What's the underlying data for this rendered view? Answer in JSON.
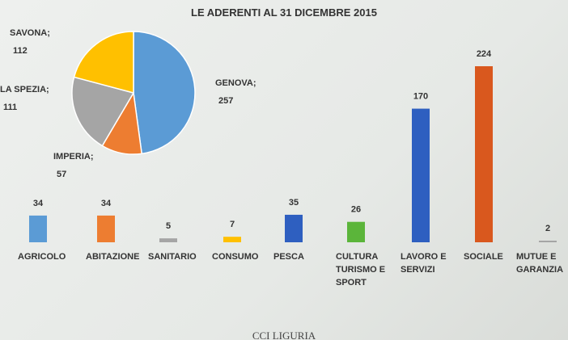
{
  "title": "LE ADERENTI AL 31 DICEMBRE 2015",
  "footer": "CCI LIGURIA",
  "chart_data": [
    {
      "type": "pie",
      "categories": [
        "GENOVA;",
        "IMPERIA;",
        "LA SPEZIA;",
        "SAVONA;"
      ],
      "values": [
        257,
        57,
        111,
        112
      ],
      "colors": [
        "#5b9bd5",
        "#ed7d31",
        "#a5a5a5",
        "#ffc000"
      ]
    },
    {
      "type": "bar",
      "categories": [
        "AGRICOLO",
        "ABITAZIONE",
        "SANITARIO",
        "CONSUMO",
        "PESCA",
        "CULTURA TURISMO E SPORT",
        "LAVORO E SERVIZI",
        "SOCIALE",
        "MUTUE E GARANZIA"
      ],
      "values": [
        34,
        34,
        5,
        7,
        35,
        26,
        170,
        224,
        2
      ],
      "colors": [
        "#5b9bd5",
        "#ed7d31",
        "#a5a5a5",
        "#ffc000",
        "#2e5fc0",
        "#5bb53a",
        "#2e5fc0",
        "#d9581e",
        "#a5a5a5"
      ]
    }
  ]
}
